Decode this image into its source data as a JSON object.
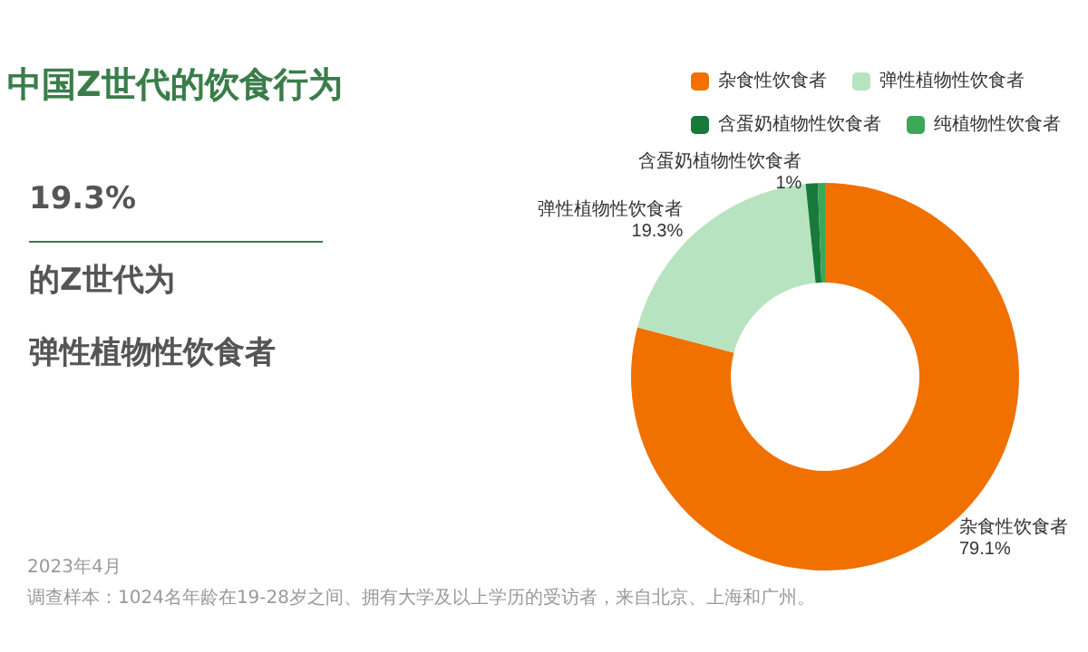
{
  "chart_data": {
    "type": "donut",
    "title": "中国Z世代的饮食行为",
    "annotations": [
      "19.3%",
      "的Z世代为",
      "弹性植物性饮食者",
      "2023年4月",
      "调查样本：1024名年龄在19-28岁之间、拥有大学及以上学历的受访者，来自北京、上海和广州。"
    ],
    "categories": [
      "杂食性饮食者",
      "弹性植物性饮食者",
      "含蛋奶植物性饮食者",
      "纯植物性饮食者"
    ],
    "values": [
      79.1,
      19.3,
      1,
      0.6
    ],
    "value_labels": [
      "79.1%",
      "19.3%",
      "1%",
      null
    ],
    "colors": [
      "#f07000",
      "#b8e3c1",
      "#177a3a",
      "#3ba757"
    ],
    "legend": "top right"
  }
}
